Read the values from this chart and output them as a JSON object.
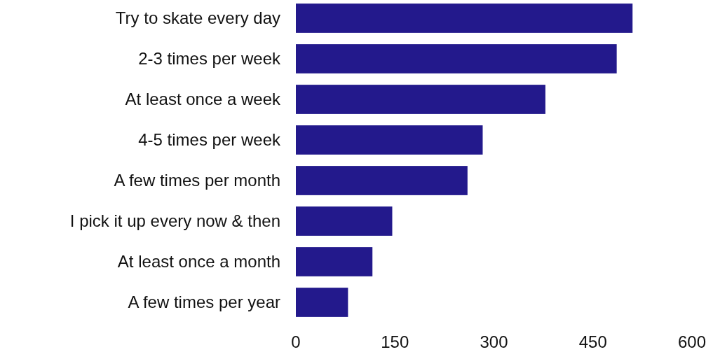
{
  "chart_data": {
    "type": "bar",
    "orientation": "horizontal",
    "categories": [
      "Try to skate every day",
      "2-3 times per week",
      "At least once a week",
      "4-5 times per week",
      "A few times per month",
      "I pick it up every now & then",
      "At least once a month",
      "A few times per year"
    ],
    "values": [
      510,
      486,
      378,
      283,
      260,
      146,
      116,
      79
    ],
    "color": "#23198c",
    "xlim": [
      0,
      600
    ],
    "xticks": [
      0,
      150,
      300,
      450,
      600
    ]
  }
}
